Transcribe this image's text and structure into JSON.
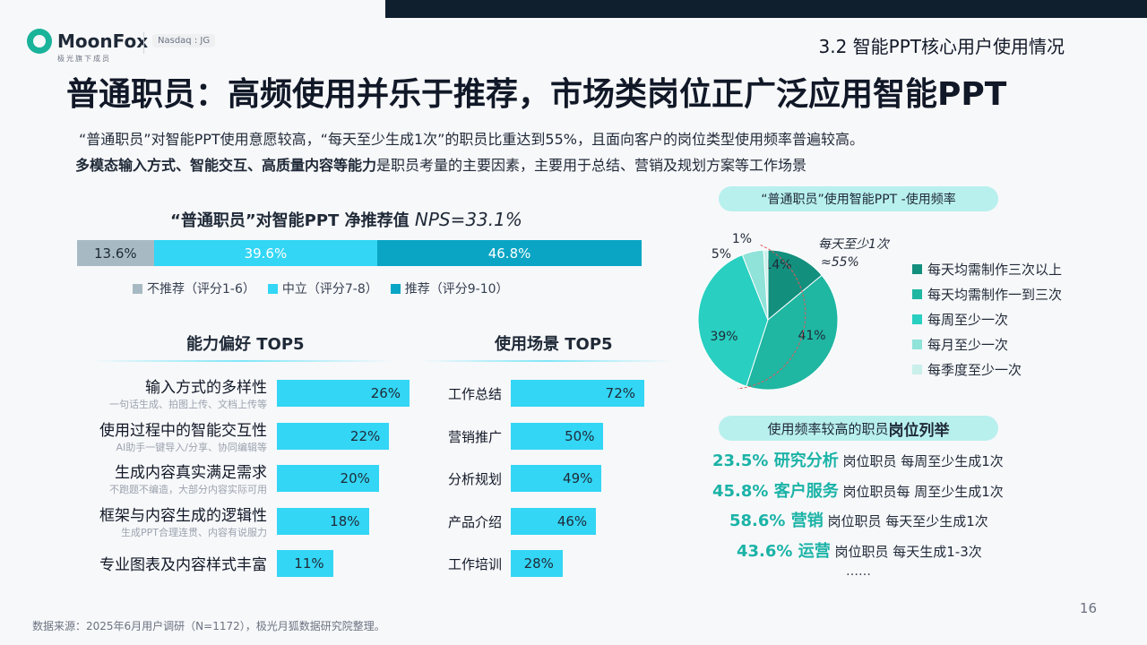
{
  "header": {
    "logo_text": "MoonFox",
    "logo_sub": "极光旗下成员",
    "nasdaq": "Nasdaq : JG",
    "section": "3.2 智能PPT核心用户使用情况"
  },
  "title": "普通职员：高频使用并乐于推荐，市场类岗位正广泛应用智能PPT",
  "subtitle1": "“普通职员”对智能PPT使用意愿较高，“每天至少生成1次”的职员比重达到55%，且面向客户的岗位类型使用频率普遍较高。",
  "subtitle2_bold": "多模态输入方式、智能交互、高质量内容等能力",
  "subtitle2_rest": "是职员考量的主要因素，主要用于总结、营销及规划方案等工作场景",
  "nps": {
    "title_plain": "“普通职员”对智能PPT  净推荐值 ",
    "title_italic": "NPS=33.1%",
    "legend": [
      "不推荐（评分1-6）",
      "中立（评分7-8）",
      "推荐（评分9-10）"
    ]
  },
  "ability": {
    "title": "能力偏好 TOP5",
    "items": [
      {
        "label": "输入方式的多样性",
        "sub": "一句话生成、拍图上传、文档上传等"
      },
      {
        "label": "使用过程中的智能交互性",
        "sub": "AI助手一键导入/分享、协同编辑等"
      },
      {
        "label": "生成内容真实满足需求",
        "sub": "不跑题不编造，大部分内容实际可用"
      },
      {
        "label": "框架与内容生成的逻辑性",
        "sub": "生成PPT合理连贯、内容有说服力"
      },
      {
        "label": "专业图表及内容样式丰富",
        "sub": ""
      }
    ]
  },
  "usecase": {
    "title": "使用场景 TOP5"
  },
  "pie": {
    "title": "“普通职员”使用智能PPT -使用频率",
    "annotation_line1": "每天至少1次",
    "annotation_line2": "≈55%"
  },
  "jobs": {
    "title_plain": "使用频率较高的职员",
    "title_bold": "岗位列举",
    "rows": [
      {
        "strong": "23.5% 研究分析",
        "rest": " 岗位职员 每周至少生成1次"
      },
      {
        "strong": "45.8% 客户服务",
        "rest": " 岗位职员每 周至少生成1次"
      },
      {
        "strong": "58.6% 营销",
        "rest": " 岗位职员  每天至少生成1次"
      },
      {
        "strong": "43.6% 运营",
        "rest": " 岗位职员 每天生成1-3次"
      }
    ],
    "ellipsis": "……"
  },
  "footer": {
    "source": "数据来源：2025年6月用户调研（N=1172），极光月狐数据研究院整理。",
    "page": "16"
  },
  "colors": {
    "nps": [
      "#a7bac4",
      "#33d6f5",
      "#0aa5c4"
    ],
    "bar": "#33d6f5",
    "pie": [
      "#138f7e",
      "#1fb6a2",
      "#29cfc0",
      "#8fe3d9",
      "#c9f0ea"
    ]
  },
  "chart_data": [
    {
      "type": "bar",
      "stacked": true,
      "orientation": "horizontal",
      "title": "“普通职员”对智能PPT  净推荐值 NPS=33.1%",
      "series": [
        {
          "name": "不推荐（评分1-6）",
          "values": [
            13.6
          ],
          "label": "13.6%"
        },
        {
          "name": "中立（评分7-8）",
          "values": [
            39.6
          ],
          "label": "39.6%"
        },
        {
          "name": "推荐（评分9-10）",
          "values": [
            46.8
          ],
          "label": "46.8%"
        }
      ],
      "legend": "bottom"
    },
    {
      "type": "bar",
      "orientation": "horizontal",
      "title": "能力偏好 TOP5",
      "categories": [
        "输入方式的多样性",
        "使用过程中的智能交互性",
        "生成内容真实满足需求",
        "框架与内容生成的逻辑性",
        "专业图表及内容样式丰富"
      ],
      "values": [
        26,
        22,
        20,
        18,
        11
      ],
      "value_labels": [
        "26%",
        "22%",
        "20%",
        "18%",
        "11%"
      ],
      "xlim": [
        0,
        72
      ]
    },
    {
      "type": "bar",
      "orientation": "horizontal",
      "title": "使用场景 TOP5",
      "categories": [
        "工作总结",
        "营销推广",
        "分析规划",
        "产品介绍",
        "工作培训"
      ],
      "values": [
        72,
        50,
        49,
        46,
        28
      ],
      "value_labels": [
        "72%",
        "50%",
        "49%",
        "46%",
        "28%"
      ],
      "xlim": [
        0,
        72
      ]
    },
    {
      "type": "pie",
      "title": "“普通职员”使用智能PPT -使用频率",
      "categories": [
        "每天均需制作三次以上",
        "每天均需制作一到三次",
        "每周至少一次",
        "每月至少一次",
        "每季度至少一次"
      ],
      "values": [
        14,
        41,
        39,
        5,
        1
      ],
      "value_labels": [
        "14%",
        "41%",
        "39%",
        "5%",
        "1%"
      ],
      "legend": "right"
    }
  ]
}
